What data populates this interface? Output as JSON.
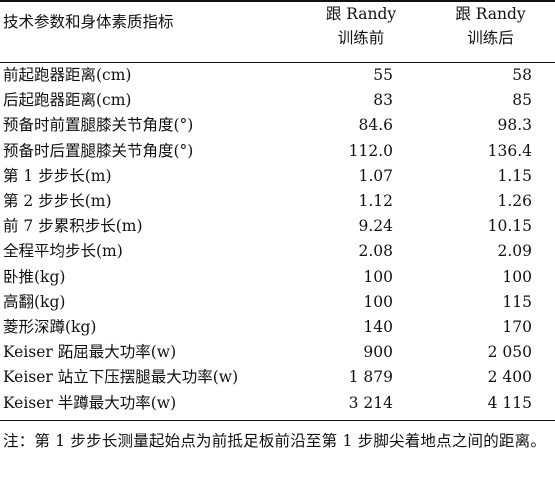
{
  "table": {
    "header": {
      "param": "技术参数和身体素质指标",
      "col1_line1": "跟 Randy",
      "col1_line2": "训练前",
      "col2_line1": "跟 Randy",
      "col2_line2": "训练后"
    },
    "rows": [
      {
        "name": "前起跑器距离(cm)",
        "before": "55",
        "after": "58"
      },
      {
        "name": "后起跑器距离(cm)",
        "before": "83",
        "after": "85"
      },
      {
        "name": "预备时前置腿膝关节角度(°)",
        "before": "84.6",
        "after": "98.3"
      },
      {
        "name": "预备时后置腿膝关节角度(°)",
        "before": "112.0",
        "after": "136.4"
      },
      {
        "name": "第 1 步步长(m)",
        "before": "1.07",
        "after": "1.15"
      },
      {
        "name": "第 2 步步长(m)",
        "before": "1.12",
        "after": "1.26"
      },
      {
        "name": "前 7 步累积步长(m)",
        "before": "9.24",
        "after": "10.15"
      },
      {
        "name": "全程平均步长(m)",
        "before": "2.08",
        "after": "2.09"
      },
      {
        "name": "卧推(kg)",
        "before": "100",
        "after": "100"
      },
      {
        "name": "高翻(kg)",
        "before": "100",
        "after": "115"
      },
      {
        "name": "菱形深蹲(kg)",
        "before": "140",
        "after": "170"
      },
      {
        "name": "Keiser 跖屈最大功率(w)",
        "before": "900",
        "after": "2 050"
      },
      {
        "name": "Keiser 站立下压摆腿最大功率(w)",
        "before": "1 879",
        "after": "2 400"
      },
      {
        "name": "Keiser 半蹲最大功率(w)",
        "before": "3 214",
        "after": "4 115"
      }
    ]
  },
  "note": "注：第 1 步步长测量起始点为前抵足板前沿至第 1 步脚尖着地点之间的距离。"
}
